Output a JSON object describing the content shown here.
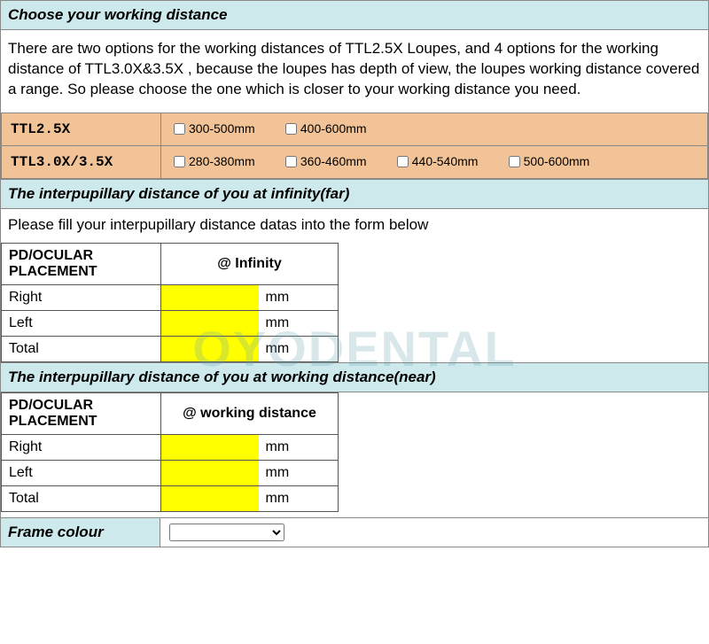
{
  "sections": {
    "working_distance": {
      "title": "Choose your working distance",
      "description": "There are two options for the working distances of TTL2.5X  Loupes, and 4 options for the working distance of TTL3.0X&3.5X , because the loupes has depth of view, the loupes working distance covered a range. So please choose the one which is closer to your working distance you need.",
      "rows": [
        {
          "label": "TTL2.5X",
          "options": [
            "300-500mm",
            "400-600mm"
          ]
        },
        {
          "label": "TTL3.0X/3.5X",
          "options": [
            "280-380mm",
            "360-460mm",
            "440-540mm",
            "500-600mm"
          ]
        }
      ]
    },
    "pd_infinity": {
      "title": "The interpupillary distance of you at infinity(far)",
      "instruction": "Please fill your interpupillary distance datas into the form below",
      "header_col1": "PD/OCULAR PLACEMENT",
      "header_col2": "@ Infinity",
      "rows": [
        {
          "label": "Right",
          "unit": "mm"
        },
        {
          "label": "Left",
          "unit": "mm"
        },
        {
          "label": "Total",
          "unit": "mm"
        }
      ]
    },
    "pd_working": {
      "title": "The interpupillary distance of you at working distance(near)",
      "header_col1": "PD/OCULAR PLACEMENT",
      "header_col2": "@ working distance",
      "rows": [
        {
          "label": "Right",
          "unit": "mm"
        },
        {
          "label": "Left",
          "unit": "mm"
        },
        {
          "label": "Total",
          "unit": "mm"
        }
      ]
    },
    "frame_colour": {
      "title": "Frame colour",
      "options": [
        ""
      ]
    }
  },
  "colors": {
    "header_bg": "#cde9eb",
    "option_bg": "#f2c396",
    "input_bg": "#ffff00",
    "border": "#888888"
  },
  "watermark": "OYODENTAL"
}
